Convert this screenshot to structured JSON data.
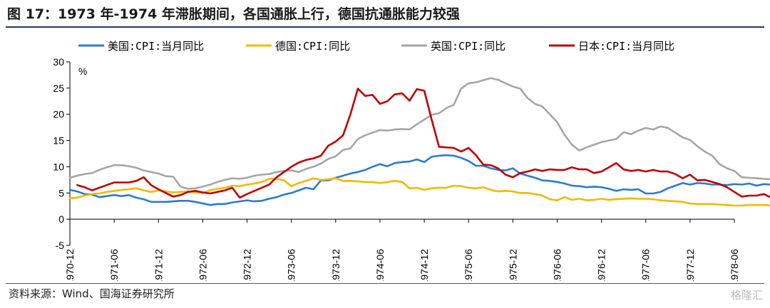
{
  "title": "图 17：1973 年-1974 年滞胀期间，各国通胀上行，德国抗通胀能力较强",
  "source": "资料来源：Wind、国海证券研究所",
  "watermark": "格隆汇",
  "chart_data": {
    "type": "line",
    "title": "",
    "xlabel": "",
    "ylabel": "%",
    "ylim": [
      -5,
      30
    ],
    "yticks": [
      -5,
      0,
      5,
      10,
      15,
      20,
      25,
      30
    ],
    "x_start": "1970-12",
    "x_end": "1978-06",
    "xticks": [
      "1970-12",
      "1971-06",
      "1971-12",
      "1972-06",
      "1972-12",
      "1973-06",
      "1973-12",
      "1974-06",
      "1974-12",
      "1975-06",
      "1975-12",
      "1976-06",
      "1976-12",
      "1977-06",
      "1977-12",
      "1978-06"
    ],
    "grid": false,
    "legend_position": "top",
    "series": [
      {
        "name": "美国:CPI:当月同比",
        "color": "#2b7bd2",
        "start": "1970-12",
        "values": [
          5.6,
          5.3,
          4.8,
          4.7,
          4.2,
          4.4,
          4.6,
          4.4,
          4.6,
          4.1,
          3.8,
          3.3,
          3.3,
          3.3,
          3.4,
          3.5,
          3.5,
          3.3,
          3.0,
          2.7,
          2.9,
          2.9,
          3.2,
          3.4,
          3.6,
          3.4,
          3.5,
          3.9,
          4.2,
          4.7,
          5.0,
          5.5,
          6.0,
          5.7,
          7.4,
          7.4,
          7.9,
          8.3,
          8.7,
          9.0,
          9.4,
          10.0,
          10.5,
          10.1,
          10.7,
          10.9,
          11.0,
          11.4,
          10.9,
          11.9,
          12.1,
          12.2,
          12.1,
          11.7,
          11.1,
          10.2,
          10.2,
          9.7,
          9.4,
          9.3,
          9.7,
          8.7,
          8.3,
          7.9,
          7.4,
          7.3,
          7.1,
          6.8,
          6.4,
          6.3,
          6.1,
          6.2,
          6.1,
          5.8,
          5.4,
          5.7,
          5.6,
          5.7,
          4.9,
          4.9,
          5.2,
          5.9,
          6.4,
          6.9,
          6.6,
          6.9,
          6.8,
          6.6,
          6.6,
          6.5,
          6.7,
          6.6,
          6.8,
          6.4,
          6.7,
          6.6,
          7.2,
          7.3,
          7.7
        ]
      },
      {
        "name": "德国:CPI:同比",
        "color": "#f5b800",
        "start": "1970-12",
        "values": [
          4.0,
          4.1,
          4.5,
          4.8,
          4.9,
          5.2,
          5.4,
          5.6,
          5.7,
          5.9,
          5.5,
          5.2,
          5.5,
          5.3,
          5.1,
          5.2,
          5.3,
          5.1,
          5.0,
          5.5,
          5.8,
          6.0,
          6.4,
          6.3,
          6.6,
          6.8,
          7.1,
          7.7,
          7.7,
          7.4,
          6.3,
          6.9,
          7.3,
          7.8,
          7.5,
          7.6,
          7.8,
          7.3,
          7.3,
          7.2,
          7.1,
          7.1,
          6.9,
          7.1,
          7.3,
          7.1,
          5.9,
          6.0,
          5.6,
          5.9,
          6.0,
          6.0,
          6.4,
          6.3,
          6.0,
          5.9,
          6.1,
          5.6,
          5.3,
          5.4,
          5.3,
          5.0,
          5.0,
          4.8,
          4.5,
          3.8,
          3.6,
          4.2,
          3.7,
          3.9,
          3.6,
          3.7,
          3.9,
          3.7,
          3.8,
          3.9,
          4.0,
          3.9,
          3.9,
          3.8,
          3.6,
          3.5,
          3.4,
          3.3,
          3.0,
          2.9,
          2.9,
          2.9,
          2.8,
          2.7,
          2.6,
          2.6,
          2.7,
          2.7,
          2.7,
          2.6,
          2.5,
          2.5,
          2.5
        ]
      },
      {
        "name": "英国:CPI:同比",
        "color": "#a6a6a6",
        "start": "1970-12",
        "values": [
          7.9,
          8.3,
          8.6,
          8.8,
          9.4,
          9.9,
          10.3,
          10.3,
          10.1,
          9.8,
          9.3,
          9.0,
          8.7,
          8.2,
          8.1,
          6.2,
          5.8,
          5.9,
          6.2,
          6.6,
          7.1,
          7.5,
          7.8,
          7.7,
          7.9,
          8.3,
          8.5,
          8.6,
          9.0,
          9.2,
          9.3,
          9.0,
          9.6,
          10.0,
          10.6,
          11.5,
          12.0,
          13.2,
          13.5,
          15.3,
          16.0,
          16.5,
          17.0,
          16.9,
          17.1,
          17.2,
          17.1,
          18.1,
          19.0,
          19.9,
          20.2,
          21.2,
          21.8,
          24.9,
          25.9,
          26.1,
          26.5,
          26.9,
          26.6,
          25.9,
          25.3,
          24.9,
          23.1,
          22.0,
          21.5,
          20.0,
          18.5,
          16.1,
          14.2,
          13.1,
          13.7,
          14.2,
          14.7,
          15.0,
          15.3,
          16.6,
          16.2,
          16.9,
          17.4,
          17.1,
          17.7,
          17.4,
          16.5,
          15.6,
          15.1,
          13.9,
          12.9,
          12.1,
          10.5,
          9.7,
          9.2,
          8.0,
          7.9,
          7.8,
          7.7,
          7.6,
          7.6,
          7.5,
          7.6
        ]
      },
      {
        "name": "日本:CPI:当月同比",
        "color": "#c00000",
        "start": "1971-01",
        "values": [
          6.5,
          6.1,
          5.5,
          6.0,
          6.5,
          7.0,
          7.0,
          7.0,
          7.3,
          8.0,
          6.5,
          5.7,
          5.0,
          4.3,
          4.6,
          5.2,
          5.4,
          5.1,
          4.9,
          5.2,
          5.5,
          6.0,
          4.1,
          4.8,
          5.4,
          6.0,
          6.6,
          8.0,
          9.0,
          10.0,
          10.8,
          11.3,
          11.6,
          12.1,
          14.0,
          14.8,
          16.0,
          20.0,
          24.9,
          23.5,
          23.7,
          22.0,
          22.5,
          23.8,
          24.0,
          22.6,
          24.8,
          24.5,
          19.0,
          13.8,
          13.7,
          13.6,
          12.9,
          13.6,
          12.2,
          10.4,
          10.3,
          9.7,
          8.5,
          8.0,
          8.8,
          9.1,
          9.5,
          9.2,
          9.5,
          9.4,
          9.4,
          9.9,
          9.5,
          9.5,
          8.8,
          9.1,
          9.9,
          10.7,
          9.5,
          9.2,
          9.4,
          9.1,
          9.4,
          9.1,
          9.1,
          8.6,
          7.8,
          8.5,
          7.4,
          7.5,
          7.1,
          6.7,
          6.1,
          5.2,
          4.3,
          4.5,
          4.5,
          4.8,
          4.1,
          4.0,
          3.8,
          4.4
        ]
      }
    ]
  }
}
